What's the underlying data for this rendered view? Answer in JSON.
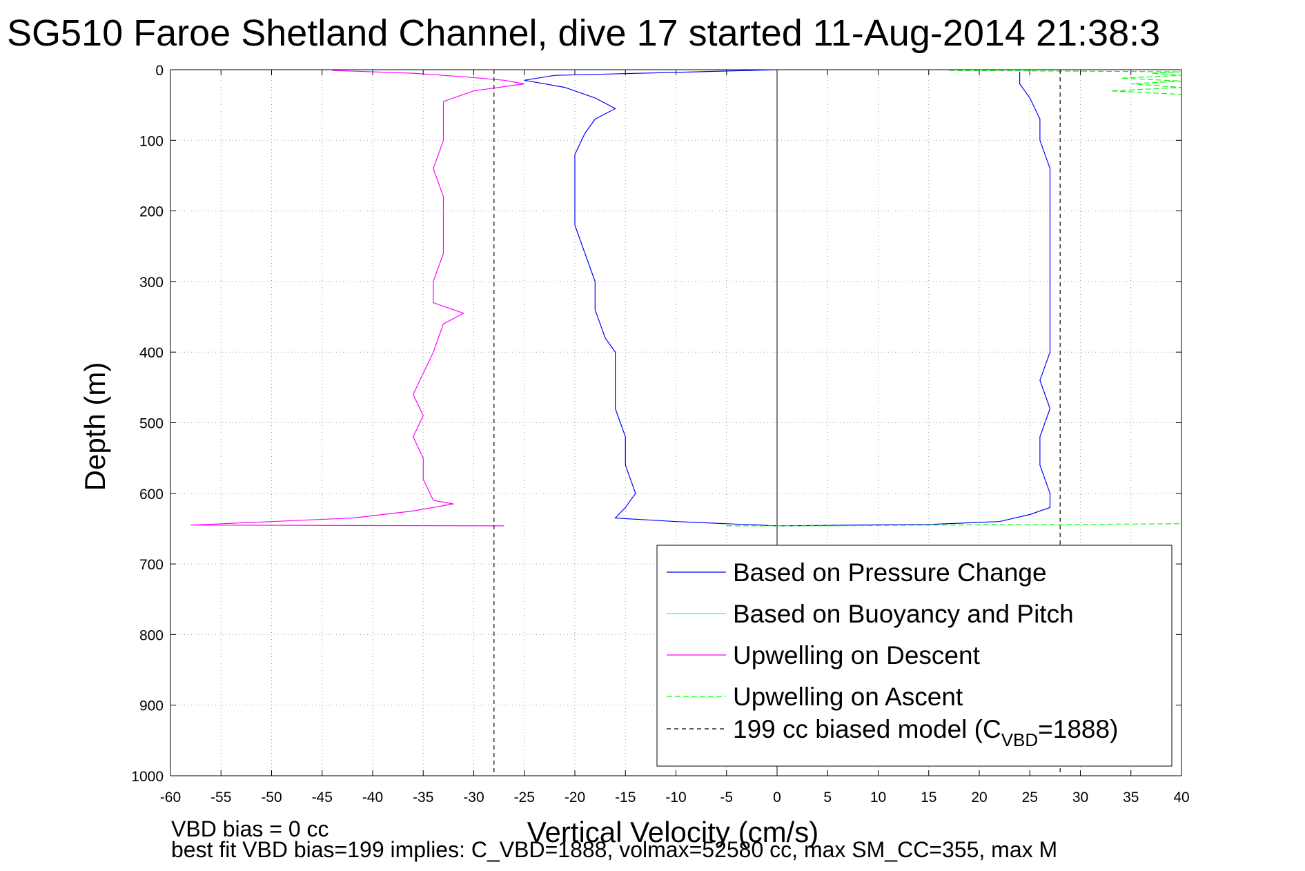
{
  "chart_data": {
    "type": "line",
    "title": "SG510 Faroe Shetland Channel, dive 17 started 11-Aug-2014 21:38:3",
    "xlabel": "Vertical Velocity (cm/s)",
    "ylabel": "Depth (m)",
    "xlim": [
      -60,
      40
    ],
    "ylim": [
      0,
      1000
    ],
    "y_reversed": true,
    "grid": true,
    "x_ticks": [
      -60,
      -55,
      -50,
      -45,
      -40,
      -35,
      -30,
      -25,
      -20,
      -15,
      -10,
      -5,
      0,
      5,
      10,
      15,
      20,
      25,
      30,
      35,
      40
    ],
    "y_ticks": [
      0,
      100,
      200,
      300,
      400,
      500,
      600,
      700,
      800,
      900,
      1000
    ],
    "zero_line_x": 0,
    "legend_position": "lower-right",
    "series": [
      {
        "name": "Based on Pressure Change",
        "color": "#0000ff",
        "style": "solid",
        "segments": [
          {
            "depth": [
              0,
              3,
              8,
              15,
              25,
              40,
              55,
              70,
              90,
              120,
              150,
              180,
              220,
              260,
              300,
              340,
              380,
              400,
              440,
              480,
              520,
              560,
              600,
              620,
              635,
              640,
              643,
              646
            ],
            "velocity": [
              0,
              -8,
              -22,
              -25,
              -21,
              -18,
              -16,
              -18,
              -19,
              -20,
              -20,
              -20,
              -20,
              -19,
              -18,
              -18,
              -17,
              -16,
              -16,
              -16,
              -15,
              -15,
              -14,
              -15,
              -16,
              -10,
              -5,
              0
            ]
          },
          {
            "depth": [
              646,
              644,
              640,
              630,
              620,
              600,
              560,
              520,
              480,
              440,
              400,
              360,
              330,
              300,
              260,
              220,
              180,
              140,
              100,
              70,
              40,
              20,
              10,
              3
            ],
            "velocity": [
              0,
              15,
              22,
              25,
              27,
              27,
              26,
              26,
              27,
              26,
              27,
              27,
              27,
              27,
              27,
              27,
              27,
              27,
              26,
              26,
              25,
              24,
              24,
              24
            ]
          }
        ]
      },
      {
        "name": "Based on Buoyancy and Pitch",
        "color": "#00ffff",
        "style": "solid",
        "segments": []
      },
      {
        "name": "Upwelling on Descent",
        "color": "#ff00ff",
        "style": "solid",
        "segments": [
          {
            "depth": [
              1,
              5,
              10,
              15,
              20,
              30,
              45,
              60,
              80,
              100,
              140,
              180,
              220,
              260,
              300,
              330,
              345,
              360,
              400,
              430,
              460,
              490,
              520,
              550,
              580,
              610,
              615,
              625,
              635,
              640,
              645,
              646
            ],
            "velocity": [
              -44,
              -36,
              -31,
              -27,
              -25,
              -30,
              -33,
              -33,
              -33,
              -33,
              -34,
              -33,
              -33,
              -33,
              -34,
              -34,
              -31,
              -33,
              -34,
              -35,
              -36,
              -35,
              -36,
              -35,
              -35,
              -34,
              -32,
              -36,
              -42,
              -50,
              -58,
              -27
            ]
          }
        ]
      },
      {
        "name": "Upwelling on Ascent",
        "color": "#00ff00",
        "style": "dashed",
        "segments": [
          {
            "depth": [
              646,
              646,
              645,
              644,
              643
            ],
            "velocity": [
              -5,
              5,
              15,
              30,
              40
            ]
          },
          {
            "depth": [
              1,
              2,
              3,
              5,
              8,
              12,
              16,
              20,
              25,
              30,
              35
            ],
            "velocity": [
              17,
              28,
              40,
              37,
              40,
              34,
              40,
              35,
              40,
              33,
              40
            ]
          }
        ]
      },
      {
        "name": "199 cc biased model (C_VBD=1888)",
        "legend_main": "199 cc biased model (C",
        "legend_sub": "VBD",
        "legend_tail": "=1888)",
        "color": "#000000",
        "style": "dashed",
        "segments": [
          {
            "depth": [
              0,
              1000
            ],
            "velocity": [
              -28,
              -28
            ]
          },
          {
            "depth": [
              0,
              1000
            ],
            "velocity": [
              28,
              28
            ]
          }
        ]
      }
    ],
    "annotations": [
      "VBD bias = 0 cc",
      "best fit VBD bias=199 implies: C_VBD=1888, volmax=52580 cc, max SM_CC=355, max M"
    ]
  }
}
